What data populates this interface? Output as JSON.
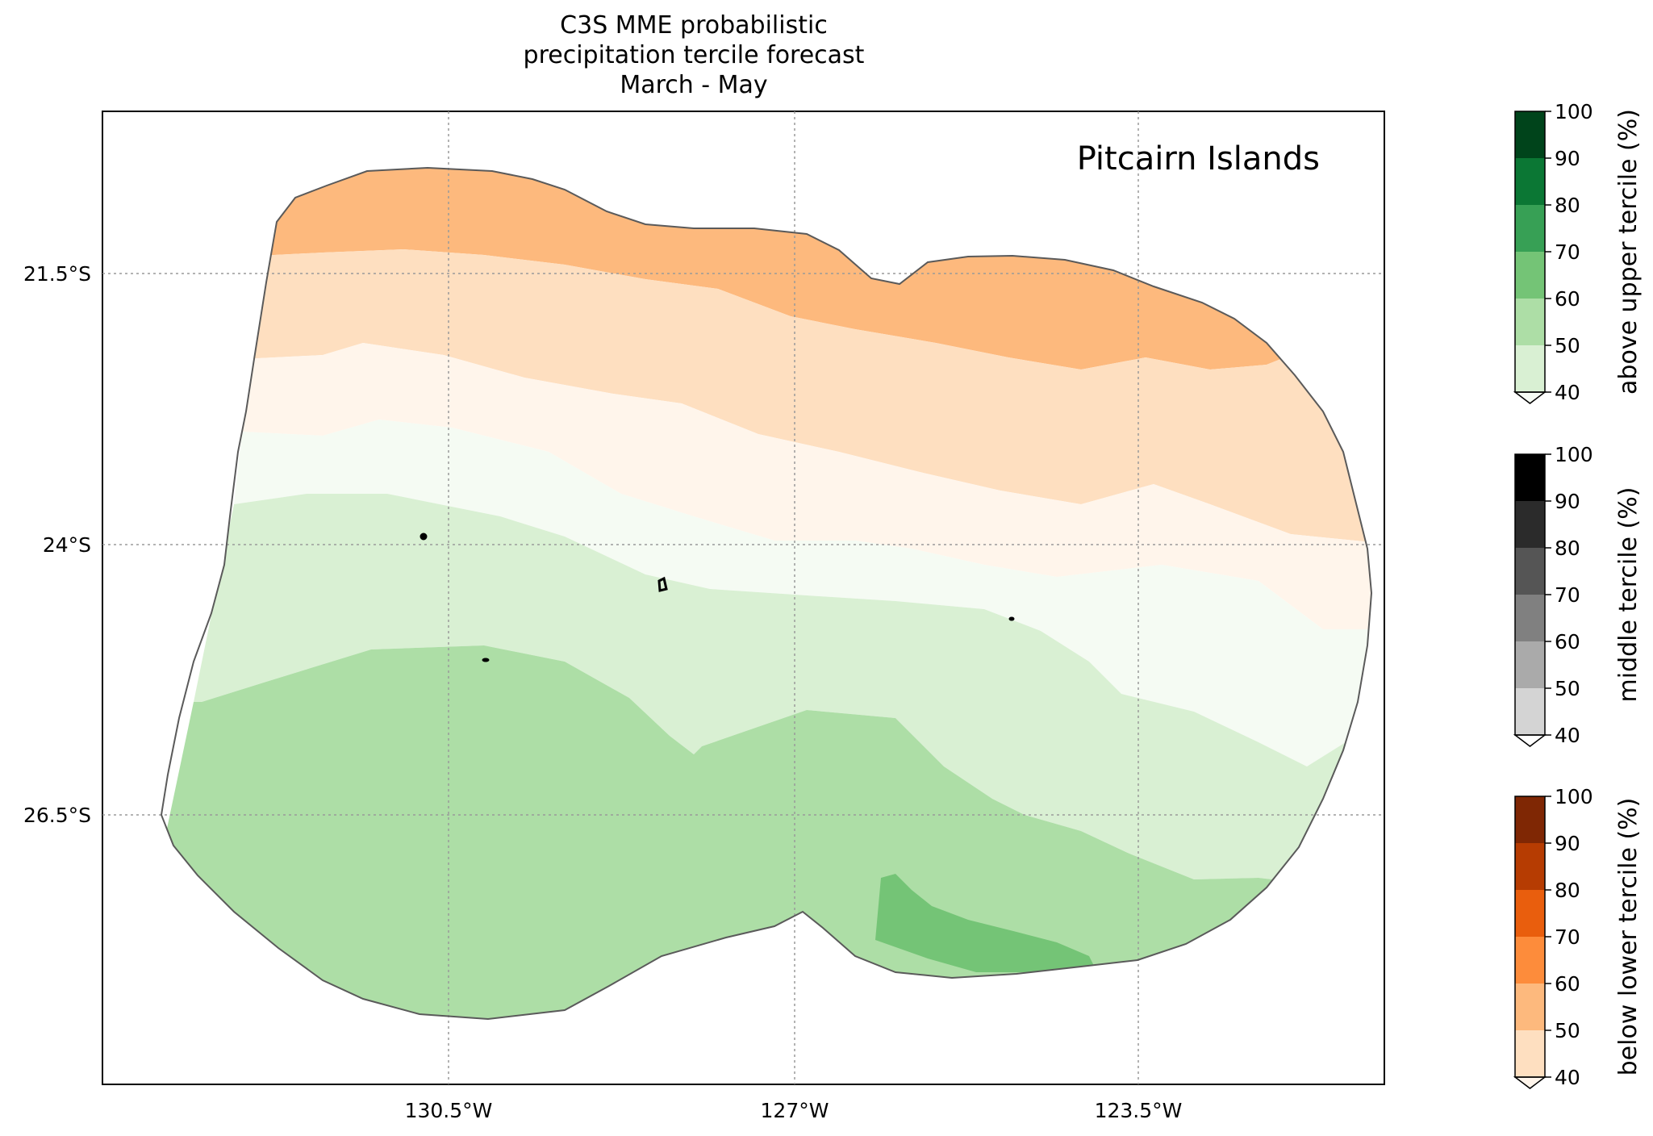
{
  "title": {
    "line1": "C3S MME probabilistic",
    "line2": "precipitation tercile forecast",
    "line3": "March - May"
  },
  "map": {
    "region_label": "Pitcairn Islands",
    "lat_ticks": [
      "21.5°S",
      "24°S",
      "26.5°S"
    ],
    "lon_ticks": [
      "130.5°W",
      "127°W",
      "123.5°W"
    ],
    "bands": [
      {
        "category": "below lower tercile",
        "range": "50-60",
        "color": "#fdb97d"
      },
      {
        "category": "below lower tercile",
        "range": "40-50",
        "color": "#fedfc0"
      },
      {
        "category": "below lower tercile",
        "range": "<40",
        "color": "#fff5eb"
      },
      {
        "category": "above upper tercile",
        "range": "<40",
        "color": "#f5fbf3"
      },
      {
        "category": "above upper tercile",
        "range": "40-50",
        "color": "#d9f0d3"
      },
      {
        "category": "above upper tercile",
        "range": "50-60",
        "color": "#addea6"
      },
      {
        "category": "above upper tercile",
        "range": "60-70",
        "color": "#74c476"
      }
    ]
  },
  "colorbars": [
    {
      "label": "above upper tercile (%)",
      "ticks": [
        "40",
        "50",
        "60",
        "70",
        "80",
        "90",
        "100"
      ],
      "colors": [
        "#d9f0d3",
        "#addea6",
        "#74c476",
        "#37a055",
        "#0b7734",
        "#00441b"
      ],
      "extend_color": "#f7fcf5"
    },
    {
      "label": "middle tercile (%)",
      "ticks": [
        "40",
        "50",
        "60",
        "70",
        "80",
        "90",
        "100"
      ],
      "colors": [
        "#d4d4d4",
        "#aaaaaa",
        "#808080",
        "#555555",
        "#2b2b2b",
        "#000000"
      ],
      "extend_color": "#ffffff"
    },
    {
      "label": "below lower tercile (%)",
      "ticks": [
        "40",
        "50",
        "60",
        "70",
        "80",
        "90",
        "100"
      ],
      "colors": [
        "#fedfc0",
        "#fdb97d",
        "#fd8c3b",
        "#e95e0d",
        "#b63c02",
        "#7f2704"
      ],
      "extend_color": "#fff5eb"
    }
  ]
}
